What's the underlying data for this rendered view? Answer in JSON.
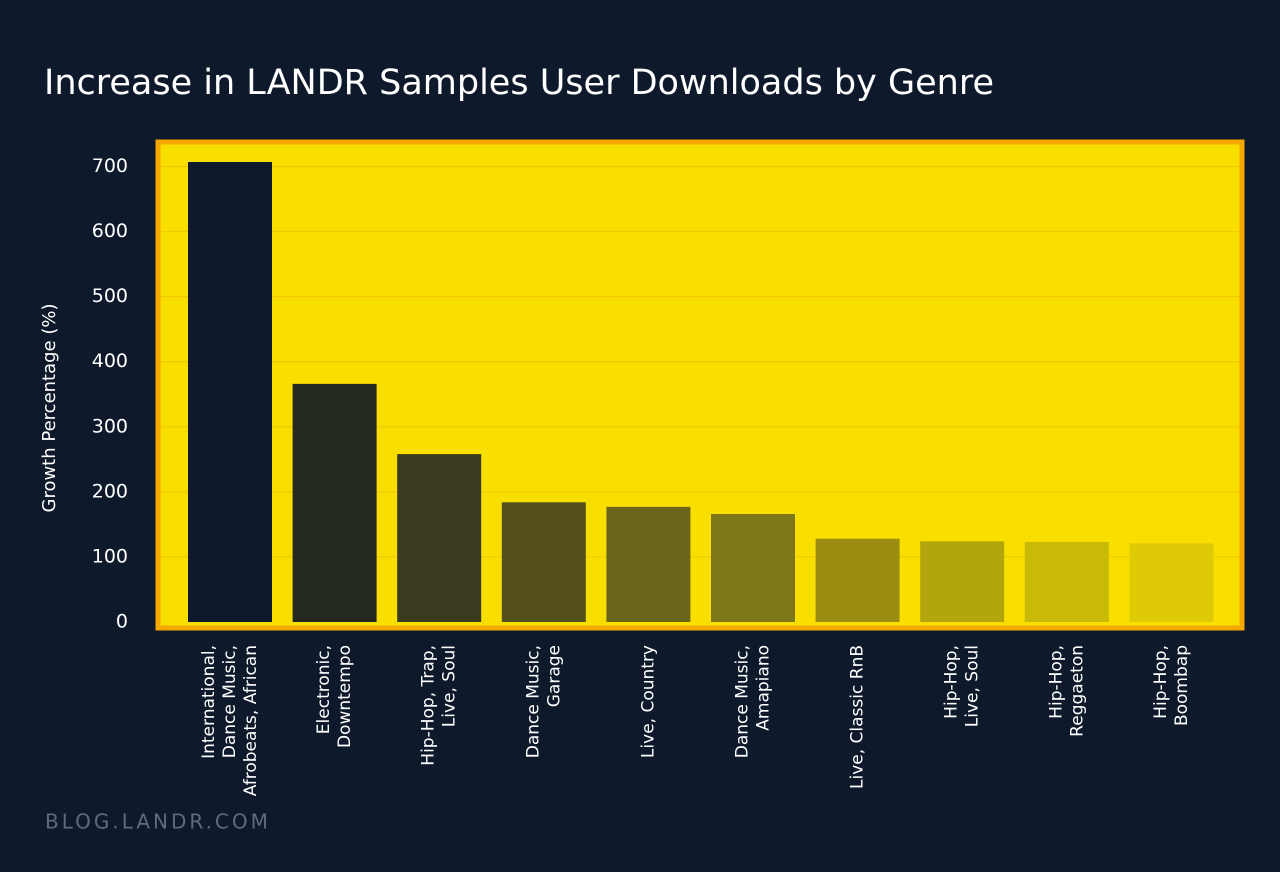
{
  "chart_data": {
    "type": "bar",
    "title": "Increase in LANDR Samples User Downloads by Genre",
    "y_label": "Growth Percentage (%)",
    "footer": "BLOG.LANDR.COM",
    "categories": [
      [
        "International,",
        "Dance Music,",
        "Afrobeats, African"
      ],
      [
        "Electronic,",
        "Downtempo"
      ],
      [
        "Hip-Hop, Trap,",
        "Live, Soul"
      ],
      [
        "Dance Music,",
        "Garage"
      ],
      [
        "Live, Country"
      ],
      [
        "Dance Music,",
        "Amapiano"
      ],
      [
        "Live, Classic RnB"
      ],
      [
        "Hip-Hop,",
        "Live, Soul"
      ],
      [
        "Hip-Hop,",
        "Reggaeton"
      ],
      [
        "Hip-Hop,",
        "Boombap"
      ]
    ],
    "values": [
      707,
      366,
      258,
      184,
      177,
      166,
      128,
      124,
      123,
      121
    ],
    "colors": [
      "#0e1a2b",
      "#23291f",
      "#3a3a1e",
      "#54501d",
      "#6a651a",
      "#7e7617",
      "#9a8d12",
      "#b3a50d",
      "#c9b909",
      "#dfcb05"
    ],
    "ylim": [
      0,
      707
    ],
    "yticks": [
      0,
      100,
      200,
      300,
      400,
      500,
      600,
      700
    ],
    "grid": true
  }
}
